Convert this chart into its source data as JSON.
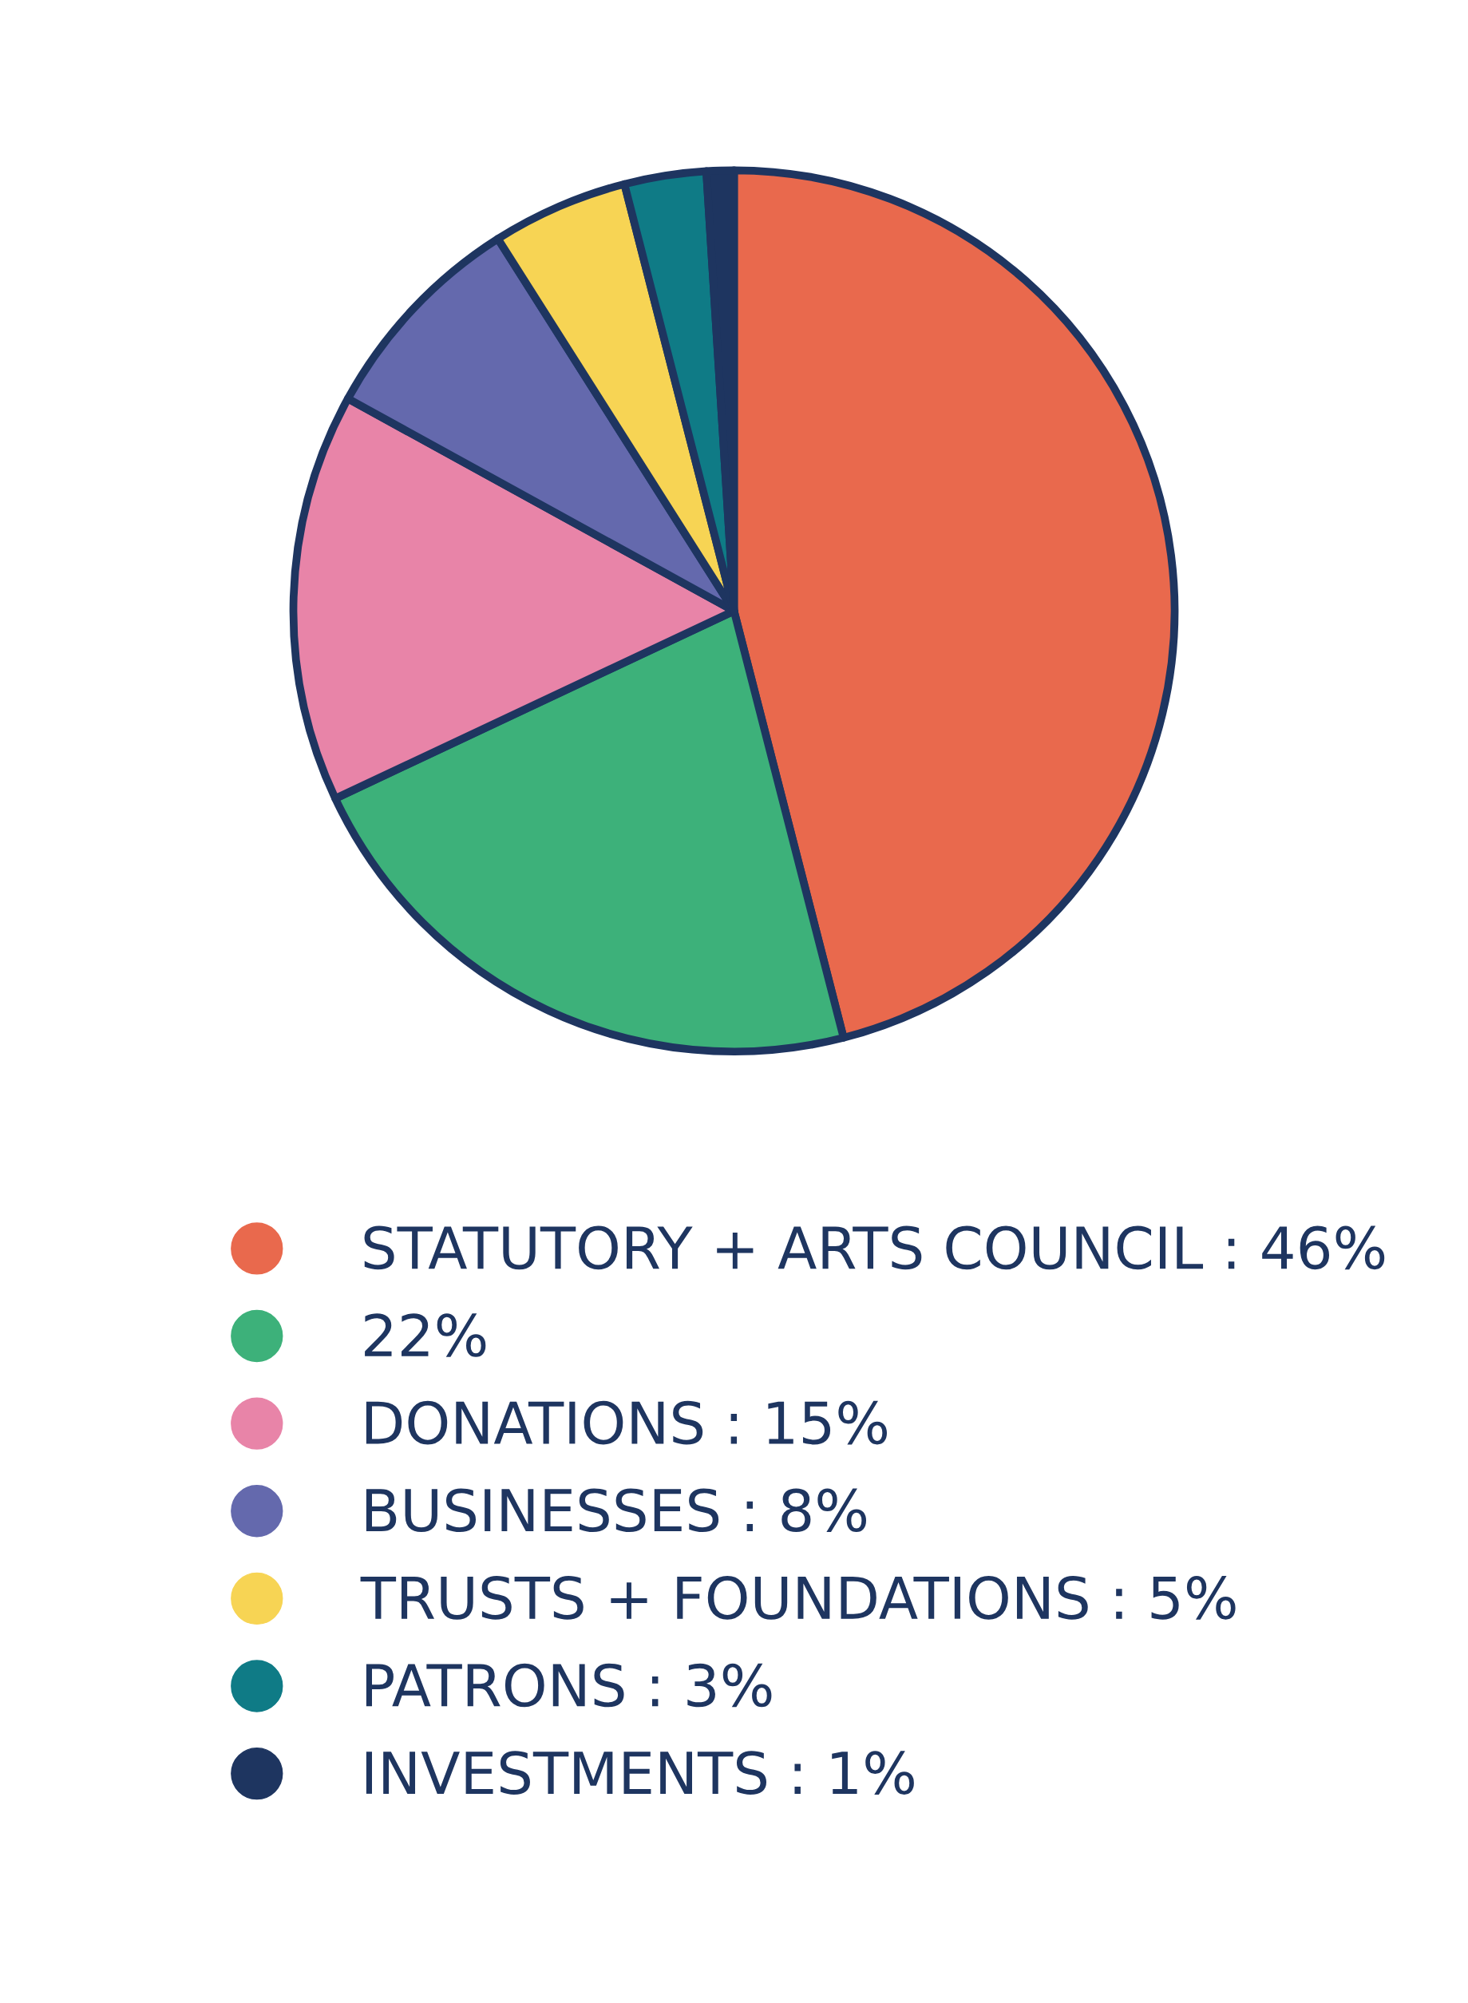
{
  "chart_data": {
    "type": "pie",
    "categories": [
      "STATUTORY + ARTS COUNCIL : 46%",
      "22%",
      "DONATIONS : 15%",
      "BUSINESSES : 8%",
      "TRUSTS + FOUNDATIONS : 5%",
      "PATRONS : 3%",
      "INVESTMENTS : 1%"
    ],
    "values": [
      46,
      22,
      15,
      8,
      5,
      3,
      1
    ],
    "colors": [
      "#e9694d",
      "#3db17a",
      "#e884a8",
      "#6469ad",
      "#f7d454",
      "#0f7b86",
      "#1e3560"
    ],
    "legend": "bottom"
  }
}
